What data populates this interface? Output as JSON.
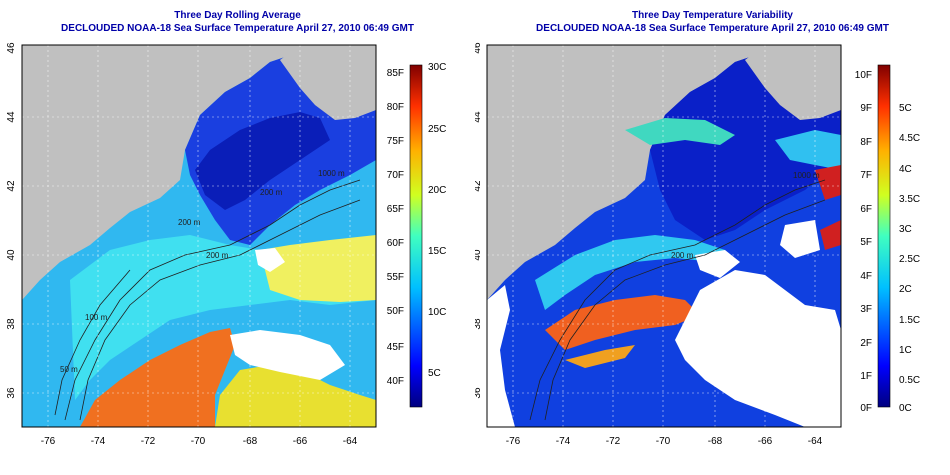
{
  "left_panel": {
    "title": "Three Day Rolling Average",
    "subtitle": "DECLOUDED NOAA-18 Sea Surface Temperature April 27, 2010 06:49 GMT",
    "colorbar_f_ticks": [
      "85F",
      "80F",
      "75F",
      "70F",
      "65F",
      "60F",
      "55F",
      "50F",
      "45F",
      "40F"
    ],
    "colorbar_c_ticks": [
      "30C",
      "25C",
      "20C",
      "15C",
      "10C",
      "5C"
    ],
    "contour_labels": [
      "200 m",
      "1000 m",
      "200 m",
      "100 m",
      "50 m",
      "200 m"
    ]
  },
  "right_panel": {
    "title": "Three Day Temperature Variability",
    "subtitle": "DECLOUDED NOAA-18 Sea Surface Temperature April 27, 2010 06:49 GMT",
    "colorbar_f_ticks": [
      "10F",
      "9F",
      "8F",
      "7F",
      "6F",
      "5F",
      "4F",
      "3F",
      "2F",
      "1F",
      "0F"
    ],
    "colorbar_c_ticks": [
      "5C",
      "4.5C",
      "4C",
      "3.5C",
      "3C",
      "2.5C",
      "2C",
      "1.5C",
      "1C",
      "0.5C",
      "0C"
    ],
    "contour_labels": [
      "200 m",
      "1000 m"
    ]
  },
  "axes": {
    "lon_ticks": [
      "-76",
      "-74",
      "-72",
      "-70",
      "-68",
      "-66",
      "-64"
    ],
    "lat_ticks": [
      "36",
      "38",
      "40",
      "42",
      "44",
      "46"
    ]
  },
  "colors": {
    "land": "#c0c0c0",
    "title": "#0000a8",
    "cold": "#0000a0",
    "warm": "#a00000"
  }
}
